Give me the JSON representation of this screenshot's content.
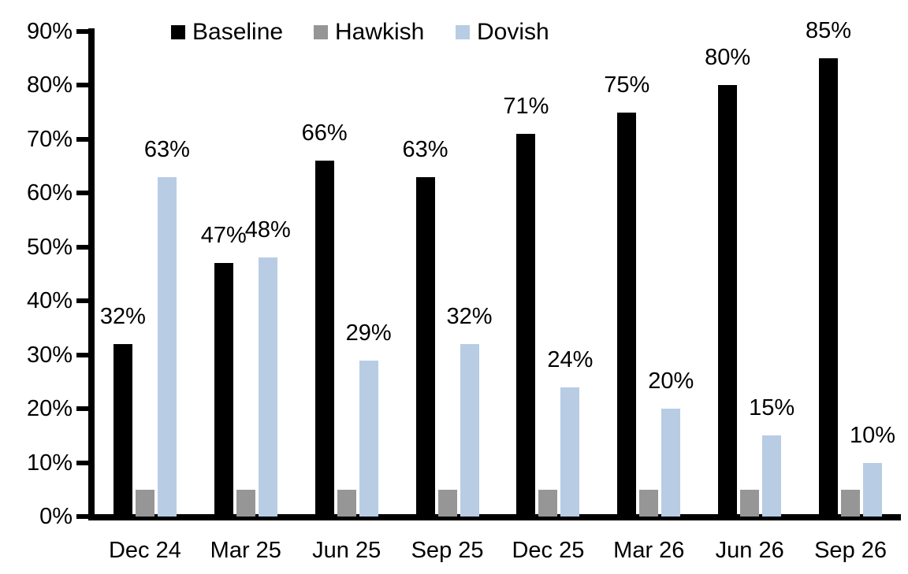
{
  "chart_data": {
    "type": "bar",
    "title": "",
    "xlabel": "",
    "ylabel": "",
    "categories": [
      "Dec 24",
      "Mar 25",
      "Jun 25",
      "Sep 25",
      "Dec 25",
      "Mar 26",
      "Jun 26",
      "Sep 26"
    ],
    "series": [
      {
        "name": "Baseline",
        "color": "#000000",
        "values": [
          32,
          47,
          66,
          63,
          71,
          75,
          80,
          85
        ],
        "labels_shown": true
      },
      {
        "name": "Hawkish",
        "color": "#969696",
        "values": [
          5,
          5,
          5,
          5,
          5,
          5,
          5,
          5
        ],
        "labels_shown": false
      },
      {
        "name": "Dovish",
        "color": "#b8cce4",
        "values": [
          63,
          48,
          29,
          32,
          24,
          20,
          15,
          10
        ],
        "labels_shown": true
      }
    ],
    "ylim": [
      0,
      90
    ],
    "ytick_step": 10,
    "ytick_labels": [
      "0%",
      "10%",
      "20%",
      "30%",
      "40%",
      "50%",
      "60%",
      "70%",
      "80%",
      "90%"
    ],
    "data_label_suffix": "%",
    "legend_position": "top",
    "grid": false
  }
}
